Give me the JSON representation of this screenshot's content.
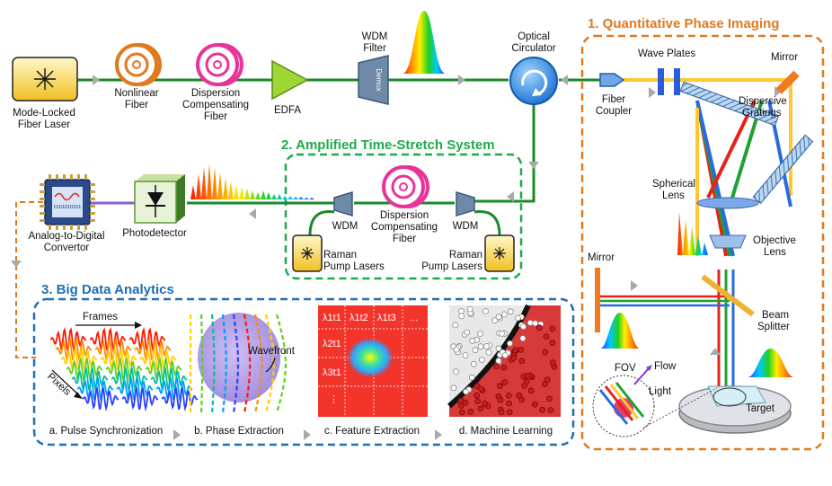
{
  "sections": {
    "qpi": {
      "title": "1. Quantitative Phase Imaging",
      "color": "#e07a1f"
    },
    "ats": {
      "title": "2. Amplified Time-Stretch System",
      "color": "#1faa4a"
    },
    "bda": {
      "title": "3. Big Data Analytics",
      "color": "#1f6fb5"
    }
  },
  "components": {
    "laser": [
      "Mode-Locked",
      "Fiber Laser"
    ],
    "nonlinear": [
      "Nonlinear",
      "Fiber"
    ],
    "dcf_top": [
      "Dispersion",
      "Compensating",
      "Fiber"
    ],
    "edfa": "EDFA",
    "wdm_filter": [
      "WDM",
      "Filter"
    ],
    "demux": "Demux",
    "circulator": [
      "Optical",
      "Circulator"
    ],
    "fiber_coupler": [
      "Fiber",
      "Coupler"
    ],
    "wave_plates": "Wave Plates",
    "mirror_top": "Mirror",
    "gratings": [
      "Dispersive",
      "Gratings"
    ],
    "spherical": [
      "Spherical",
      "Lens"
    ],
    "objective": [
      "Objective",
      "Lens"
    ],
    "mirror_left": "Mirror",
    "beam_splitter": [
      "Beam",
      "Splitter"
    ],
    "fov": "FOV",
    "flow": "Flow",
    "light": "Light",
    "target": "Target",
    "wdm_left": "WDM",
    "wdm_right": "WDM",
    "dcf_mid": [
      "Dispersion",
      "Compensating",
      "Fiber"
    ],
    "raman_left": [
      "Raman",
      "Pump Lasers"
    ],
    "raman_right": [
      "Raman",
      "Pump Lasers"
    ],
    "photodetector": "Photodetector",
    "adc": [
      "Analog-to-Digital",
      "Convertor"
    ],
    "adc_chip_text": "0101010101"
  },
  "analytics": {
    "frames": "Frames",
    "pixels": "Pixels",
    "wavefront": "Wavefront",
    "grid_cells": [
      "λ1t1",
      "λ1t2",
      "λ1t3",
      "...",
      "λ2t1",
      "λ3t1",
      "⋮"
    ],
    "steps": [
      "a. Pulse Synchronization",
      "b. Phase Extraction",
      "c. Feature Extraction",
      "d. Machine Learning"
    ]
  }
}
